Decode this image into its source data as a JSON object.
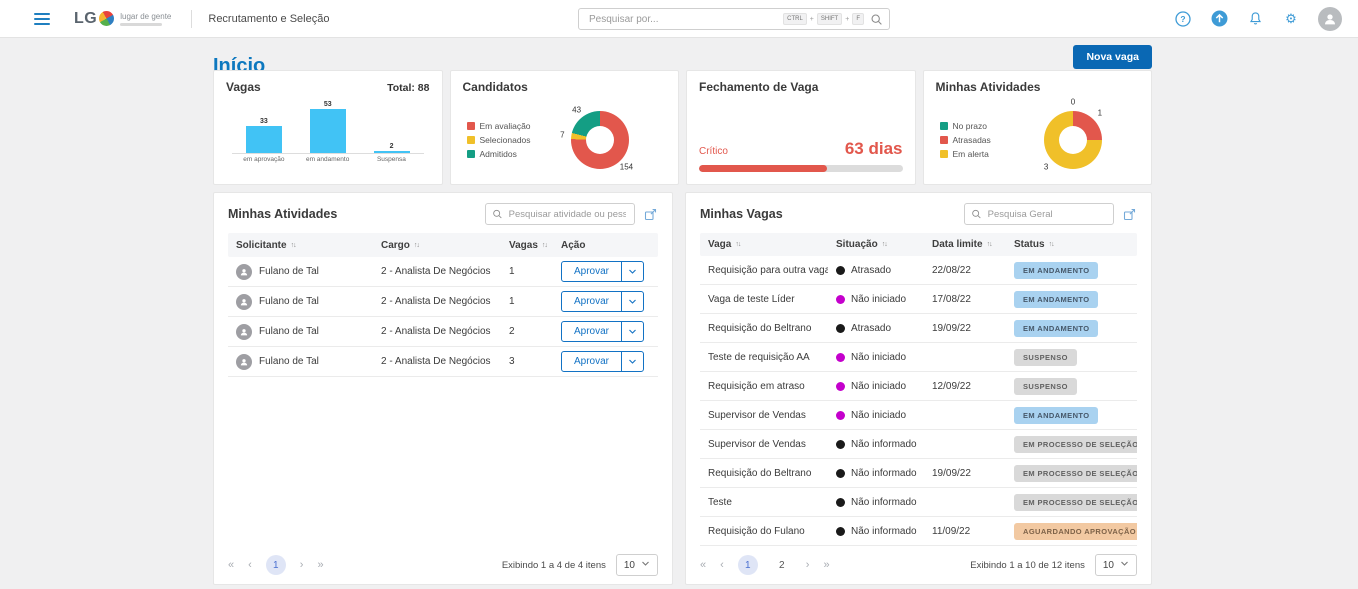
{
  "topbar": {
    "brand": {
      "logo_text": "LG",
      "tagline": "lugar de gente"
    },
    "app_title": "Recrutamento e Seleção",
    "search": {
      "placeholder": "Pesquisar por...",
      "shortcut_keys": [
        "CTRL",
        "SHIFT",
        "F"
      ]
    }
  },
  "page": {
    "title": "Início",
    "new_vacancy_button": "Nova vaga"
  },
  "cards": {
    "vagas": {
      "title": "Vagas",
      "total_label": "Total: 88"
    },
    "candidatos": {
      "title": "Candidatos"
    },
    "fechamento": {
      "title": "Fechamento de Vaga",
      "level_label": "Crítico",
      "value_label": "63 dias",
      "progress_pct": 63
    },
    "atividades": {
      "title": "Minhas Atividades"
    }
  },
  "chart_data": [
    {
      "type": "bar",
      "title": "Vagas",
      "total_label": "Total: 88",
      "categories": [
        "em aprovação",
        "em andamento",
        "Suspensa"
      ],
      "values": [
        33,
        53,
        2
      ],
      "bar_color": "#41c3f5",
      "ylim": [
        0,
        53
      ]
    },
    {
      "type": "pie",
      "title": "Candidatos",
      "donut": true,
      "legend_position": "left",
      "series": [
        {
          "name": "Em avaliação",
          "value": 154,
          "color": "#e2574c"
        },
        {
          "name": "Selecionados",
          "value": 7,
          "color": "#f0c029"
        },
        {
          "name": "Admitidos",
          "value": 43,
          "color": "#149e84"
        }
      ]
    },
    {
      "type": "pie",
      "title": "Minhas Atividades",
      "donut": true,
      "legend_position": "left",
      "series": [
        {
          "name": "No prazo",
          "value": 0,
          "color": "#149e84"
        },
        {
          "name": "Atrasadas",
          "value": 1,
          "color": "#e2574c"
        },
        {
          "name": "Em alerta",
          "value": 3,
          "color": "#f0c029"
        }
      ]
    }
  ],
  "activities_table": {
    "title": "Minhas Atividades",
    "search_placeholder": "Pesquisar atividade ou pessoa",
    "columns": [
      {
        "label": "Solicitante",
        "sortable": true
      },
      {
        "label": "Cargo",
        "sortable": true
      },
      {
        "label": "Vagas",
        "sortable": true
      },
      {
        "label": "Ação",
        "sortable": false
      }
    ],
    "approve_label": "Aprovar",
    "rows": [
      {
        "solicitante": "Fulano de Tal",
        "cargo": "2 - Analista De Negócios",
        "vagas": "1"
      },
      {
        "solicitante": "Fulano de Tal",
        "cargo": "2 - Analista De Negócios",
        "vagas": "1"
      },
      {
        "solicitante": "Fulano de Tal",
        "cargo": "2 - Analista De Negócios",
        "vagas": "2"
      },
      {
        "solicitante": "Fulano de Tal",
        "cargo": "2 - Analista De Negócios",
        "vagas": "3"
      }
    ],
    "pagination": {
      "pages": [
        "1"
      ],
      "active_page": "1",
      "summary": "Exibindo 1 a 4 de 4 itens",
      "page_size": "10"
    }
  },
  "vacancies_table": {
    "title": "Minhas Vagas",
    "search_placeholder": "Pesquisa Geral",
    "columns": [
      {
        "label": "Vaga",
        "sortable": true
      },
      {
        "label": "Situação",
        "sortable": true
      },
      {
        "label": "Data limite",
        "sortable": true
      },
      {
        "label": "Status",
        "sortable": true
      }
    ],
    "rows": [
      {
        "vaga": "Requisição para outra vaga",
        "situacao": "Atrasado",
        "situacao_color": "#1a1a1a",
        "data_limite": "22/08/22",
        "status": "EM ANDAMENTO",
        "status_type": "blue"
      },
      {
        "vaga": "Vaga de teste Líder",
        "situacao": "Não iniciado",
        "situacao_color": "#c400cc",
        "data_limite": "17/08/22",
        "status": "EM ANDAMENTO",
        "status_type": "blue"
      },
      {
        "vaga": "Requisição do Beltrano",
        "situacao": "Atrasado",
        "situacao_color": "#1a1a1a",
        "data_limite": "19/09/22",
        "status": "EM ANDAMENTO",
        "status_type": "blue"
      },
      {
        "vaga": "Teste de requisição AA",
        "situacao": "Não iniciado",
        "situacao_color": "#c400cc",
        "data_limite": "",
        "status": "SUSPENSO",
        "status_type": "gray"
      },
      {
        "vaga": "Requisição em atraso",
        "situacao": "Não iniciado",
        "situacao_color": "#c400cc",
        "data_limite": "12/09/22",
        "status": "SUSPENSO",
        "status_type": "gray"
      },
      {
        "vaga": "Supervisor de Vendas",
        "situacao": "Não iniciado",
        "situacao_color": "#c400cc",
        "data_limite": "",
        "status": "EM ANDAMENTO",
        "status_type": "blue"
      },
      {
        "vaga": "Supervisor de Vendas",
        "situacao": "Não informado",
        "situacao_color": "#1a1a1a",
        "data_limite": "",
        "status": "EM PROCESSO DE SELEÇÃO",
        "status_type": "gray"
      },
      {
        "vaga": "Requisição do Beltrano",
        "situacao": "Não informado",
        "situacao_color": "#1a1a1a",
        "data_limite": "19/09/22",
        "status": "EM PROCESSO DE SELEÇÃO",
        "status_type": "gray"
      },
      {
        "vaga": "Teste",
        "situacao": "Não informado",
        "situacao_color": "#1a1a1a",
        "data_limite": "",
        "status": "EM PROCESSO DE SELEÇÃO",
        "status_type": "gray"
      },
      {
        "vaga": "Requisição do Fulano",
        "situacao": "Não informado",
        "situacao_color": "#1a1a1a",
        "data_limite": "11/09/22",
        "status": "AGUARDANDO APROVAÇÃO",
        "status_type": "orange"
      }
    ],
    "pagination": {
      "pages": [
        "1",
        "2"
      ],
      "active_page": "1",
      "summary": "Exibindo 1 a 10 de 12 itens",
      "page_size": "10"
    }
  },
  "colors": {
    "accent_blue": "#0d78bf",
    "button_blue": "#0a68b4",
    "bar_blue": "#41c3f5",
    "status_red": "#e2574c",
    "status_yellow": "#f0c029",
    "status_green": "#149e84",
    "dot_magenta": "#c400cc",
    "dot_black": "#1a1a1a",
    "badge_blue_bg": "#a9d2f0",
    "badge_gray_bg": "#d9d9d9",
    "badge_orange_bg": "#f2c9a2"
  }
}
